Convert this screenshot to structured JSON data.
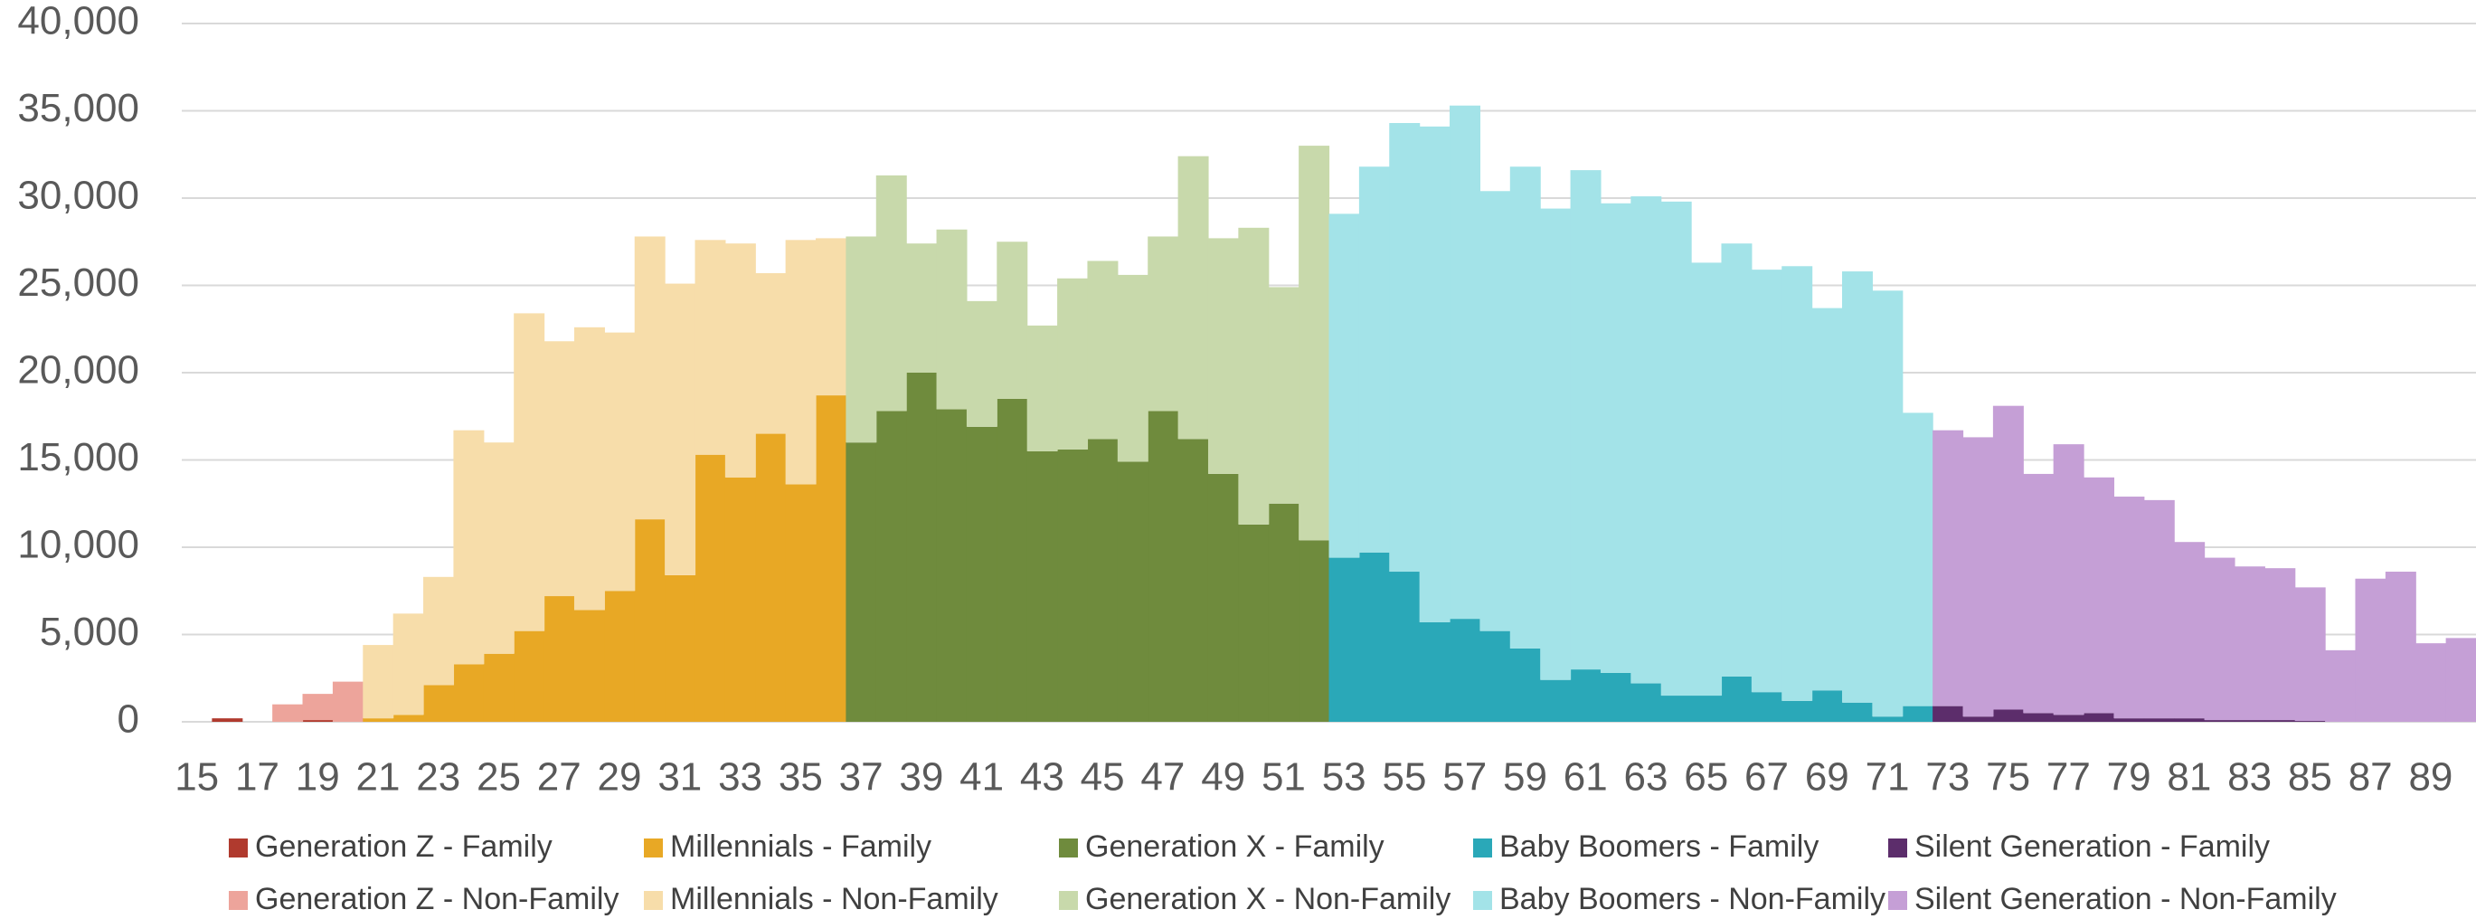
{
  "chart_data": {
    "type": "bar",
    "stacked": true,
    "grid": true,
    "categories": [
      "15",
      null,
      "17",
      null,
      "19",
      null,
      "21",
      null,
      "23",
      null,
      "25",
      null,
      "27",
      null,
      "29",
      null,
      "31",
      null,
      "33",
      null,
      "35",
      null,
      "37",
      null,
      "39",
      null,
      "41",
      null,
      "43",
      null,
      "45",
      null,
      "47",
      null,
      "49",
      null,
      "51",
      null,
      "53",
      null,
      "55",
      null,
      "57",
      null,
      "59",
      null,
      "61",
      null,
      "63",
      null,
      "65",
      null,
      "67",
      null,
      "69",
      null,
      "71",
      null,
      "73",
      null,
      "75",
      null,
      "77",
      null,
      "79",
      null,
      "81",
      null,
      "83",
      null,
      "85",
      null,
      "87",
      null,
      "89",
      null
    ],
    "ylim": [
      0,
      40000
    ],
    "yticks": [
      0,
      {
        "value": 5000,
        "label": "5,000"
      },
      {
        "value": 10000,
        "label": "10,000"
      },
      {
        "value": 15000,
        "label": "15,000"
      },
      {
        "value": 20000,
        "label": "20,000"
      },
      {
        "value": 25000,
        "label": "25,000"
      },
      {
        "value": 30000,
        "label": "30,000"
      },
      {
        "value": 35000,
        "label": "35,000"
      },
      {
        "value": 40000,
        "label": "40,000"
      }
    ],
    "series": [
      {
        "name": "Generation Z - Family",
        "color": "#b03a2e",
        "values": [
          0,
          200,
          0,
          0,
          100,
          0,
          null,
          null,
          null,
          null,
          null,
          null,
          null,
          null,
          null,
          null,
          null,
          null,
          null,
          null,
          null,
          null,
          null,
          null,
          null,
          null,
          null,
          null,
          null,
          null,
          null,
          null,
          null,
          null,
          null,
          null,
          null,
          null,
          null,
          null,
          null,
          null,
          null,
          null,
          null,
          null,
          null,
          null,
          null,
          null,
          null,
          null,
          null,
          null,
          null,
          null,
          null,
          null,
          null,
          null,
          null,
          null,
          null,
          null,
          null,
          null,
          null,
          null,
          null,
          null,
          null,
          null,
          null,
          null,
          null,
          null
        ]
      },
      {
        "name": "Generation Z - Non-Family",
        "color": "#eda49b",
        "values": [
          0,
          0,
          0,
          1000,
          1500,
          2300,
          null,
          null,
          null,
          null,
          null,
          null,
          null,
          null,
          null,
          null,
          null,
          null,
          null,
          null,
          null,
          null,
          null,
          null,
          null,
          null,
          null,
          null,
          null,
          null,
          null,
          null,
          null,
          null,
          null,
          null,
          null,
          null,
          null,
          null,
          null,
          null,
          null,
          null,
          null,
          null,
          null,
          null,
          null,
          null,
          null,
          null,
          null,
          null,
          null,
          null,
          null,
          null,
          null,
          null,
          null,
          null,
          null,
          null,
          null,
          null,
          null,
          null,
          null,
          null,
          null,
          null,
          null,
          null,
          null,
          null
        ]
      },
      {
        "name": "Millennials - Family",
        "color": "#e8a825",
        "values": [
          null,
          null,
          null,
          null,
          null,
          null,
          200,
          400,
          2100,
          3300,
          3900,
          5200,
          7200,
          6400,
          7500,
          11600,
          8400,
          15300,
          14000,
          16500,
          13600,
          18700,
          null,
          null,
          null,
          null,
          null,
          null,
          null,
          null,
          null,
          null,
          null,
          null,
          null,
          null,
          null,
          null,
          null,
          null,
          null,
          null,
          null,
          null,
          null,
          null,
          null,
          null,
          null,
          null,
          null,
          null,
          null,
          null,
          null,
          null,
          null,
          null,
          null,
          null,
          null,
          null,
          null,
          null,
          null,
          null,
          null,
          null,
          null,
          null,
          null,
          null,
          null,
          null,
          null,
          null
        ]
      },
      {
        "name": "Millennials - Non-Family",
        "color": "#f7ddaa",
        "values": [
          null,
          null,
          null,
          null,
          null,
          null,
          4200,
          5800,
          6200,
          13400,
          12100,
          18200,
          14600,
          16200,
          14800,
          16200,
          16700,
          12300,
          13400,
          9200,
          14000,
          9000,
          null,
          null,
          null,
          null,
          null,
          null,
          null,
          null,
          null,
          null,
          null,
          null,
          null,
          null,
          null,
          null,
          null,
          null,
          null,
          null,
          null,
          null,
          null,
          null,
          null,
          null,
          null,
          null,
          null,
          null,
          null,
          null,
          null,
          null,
          null,
          null,
          null,
          null,
          null,
          null,
          null,
          null,
          null,
          null,
          null,
          null,
          null,
          null,
          null,
          null,
          null,
          null,
          null,
          null
        ]
      },
      {
        "name": "Generation X - Family",
        "color": "#6f8b3d",
        "values": [
          null,
          null,
          null,
          null,
          null,
          null,
          null,
          null,
          null,
          null,
          null,
          null,
          null,
          null,
          null,
          null,
          null,
          null,
          null,
          null,
          null,
          null,
          16000,
          17800,
          20000,
          17900,
          16900,
          18500,
          15500,
          15600,
          16200,
          14900,
          17800,
          16200,
          14200,
          11300,
          12500,
          10400,
          null,
          null,
          null,
          null,
          null,
          null,
          null,
          null,
          null,
          null,
          null,
          null,
          null,
          null,
          null,
          null,
          null,
          null,
          null,
          null,
          null,
          null,
          null,
          null,
          null,
          null,
          null,
          null,
          null,
          null,
          null,
          null,
          null,
          null,
          null,
          null,
          null,
          null
        ]
      },
      {
        "name": "Generation X - Non-Family",
        "color": "#c8d9ab",
        "values": [
          null,
          null,
          null,
          null,
          null,
          null,
          null,
          null,
          null,
          null,
          null,
          null,
          null,
          null,
          null,
          null,
          null,
          null,
          null,
          null,
          null,
          null,
          11800,
          13500,
          7400,
          10300,
          7200,
          9000,
          7200,
          9800,
          10200,
          10700,
          10000,
          16200,
          13500,
          17000,
          12400,
          22600,
          null,
          null,
          null,
          null,
          null,
          null,
          null,
          null,
          null,
          null,
          null,
          null,
          null,
          null,
          null,
          null,
          null,
          null,
          null,
          null,
          null,
          null,
          null,
          null,
          null,
          null,
          null,
          null,
          null,
          null,
          null,
          null,
          null,
          null,
          null,
          null,
          null,
          null
        ]
      },
      {
        "name": "Baby Boomers - Family",
        "color": "#2aa8b8",
        "values": [
          null,
          null,
          null,
          null,
          null,
          null,
          null,
          null,
          null,
          null,
          null,
          null,
          null,
          null,
          null,
          null,
          null,
          null,
          null,
          null,
          null,
          null,
          null,
          null,
          null,
          null,
          null,
          null,
          null,
          null,
          null,
          null,
          null,
          null,
          null,
          null,
          null,
          null,
          9400,
          9700,
          8600,
          5700,
          5900,
          5200,
          4200,
          2400,
          3000,
          2800,
          2200,
          1500,
          1500,
          2600,
          1700,
          1200,
          1800,
          1100,
          300,
          900,
          null,
          null,
          null,
          null,
          null,
          null,
          null,
          null,
          null,
          null,
          null,
          null,
          null,
          null,
          null,
          null,
          null,
          null
        ]
      },
      {
        "name": "Baby Boomers - Non-Family",
        "color": "#a3e3e8",
        "values": [
          null,
          null,
          null,
          null,
          null,
          null,
          null,
          null,
          null,
          null,
          null,
          null,
          null,
          null,
          null,
          null,
          null,
          null,
          null,
          null,
          null,
          null,
          null,
          null,
          null,
          null,
          null,
          null,
          null,
          null,
          null,
          null,
          null,
          null,
          null,
          null,
          null,
          null,
          19700,
          22100,
          25700,
          28400,
          29400,
          25200,
          27600,
          27000,
          28600,
          26900,
          27900,
          28300,
          24800,
          24800,
          24200,
          24900,
          21900,
          24700,
          24400,
          16800,
          null,
          null,
          null,
          null,
          null,
          null,
          null,
          null,
          null,
          null,
          null,
          null,
          null,
          null,
          null,
          null,
          null,
          null
        ]
      },
      {
        "name": "Silent Generation - Family",
        "color": "#5c2d6b",
        "values": [
          null,
          null,
          null,
          null,
          null,
          null,
          null,
          null,
          null,
          null,
          null,
          null,
          null,
          null,
          null,
          null,
          null,
          null,
          null,
          null,
          null,
          null,
          null,
          null,
          null,
          null,
          null,
          null,
          null,
          null,
          null,
          null,
          null,
          null,
          null,
          null,
          null,
          null,
          null,
          null,
          null,
          null,
          null,
          null,
          null,
          null,
          null,
          null,
          null,
          null,
          null,
          null,
          null,
          null,
          null,
          null,
          null,
          null,
          900,
          300,
          700,
          500,
          400,
          500,
          200,
          200,
          200,
          100,
          100,
          100,
          50,
          0,
          0,
          0,
          0,
          0
        ]
      },
      {
        "name": "Silent Generation - Non-Family",
        "color": "#c59fd6",
        "values": [
          null,
          null,
          null,
          null,
          null,
          null,
          null,
          null,
          null,
          null,
          null,
          null,
          null,
          null,
          null,
          null,
          null,
          null,
          null,
          null,
          null,
          null,
          null,
          null,
          null,
          null,
          null,
          null,
          null,
          null,
          null,
          null,
          null,
          null,
          null,
          null,
          null,
          null,
          null,
          null,
          null,
          null,
          null,
          null,
          null,
          null,
          null,
          null,
          null,
          null,
          null,
          null,
          null,
          null,
          null,
          null,
          null,
          null,
          15800,
          16000,
          17400,
          13700,
          15500,
          13500,
          12700,
          12500,
          10100,
          9300,
          8800,
          8700,
          7650,
          4100,
          8200,
          8600,
          4500,
          4800
        ]
      }
    ]
  }
}
